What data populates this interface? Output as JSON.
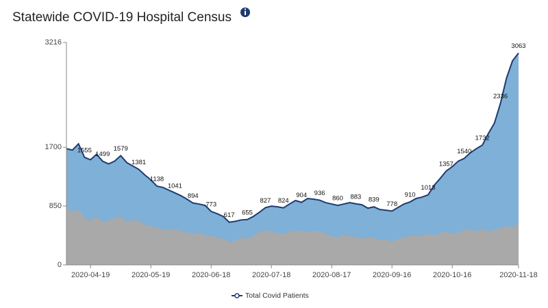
{
  "chart_data": {
    "type": "area",
    "title": "Statewide COVID-19 Hospital Census",
    "x": [
      "2020-04-07",
      "2020-04-10",
      "2020-04-13",
      "2020-04-16",
      "2020-04-19",
      "2020-04-22",
      "2020-04-25",
      "2020-04-28",
      "2020-05-01",
      "2020-05-04",
      "2020-05-07",
      "2020-05-10",
      "2020-05-13",
      "2020-05-16",
      "2020-05-19",
      "2020-05-22",
      "2020-05-25",
      "2020-05-28",
      "2020-05-31",
      "2020-06-03",
      "2020-06-06",
      "2020-06-09",
      "2020-06-12",
      "2020-06-15",
      "2020-06-18",
      "2020-06-21",
      "2020-06-24",
      "2020-06-27",
      "2020-06-30",
      "2020-07-03",
      "2020-07-06",
      "2020-07-09",
      "2020-07-12",
      "2020-07-15",
      "2020-07-18",
      "2020-07-21",
      "2020-07-24",
      "2020-07-27",
      "2020-07-30",
      "2020-08-02",
      "2020-08-05",
      "2020-08-08",
      "2020-08-11",
      "2020-08-14",
      "2020-08-17",
      "2020-08-20",
      "2020-08-23",
      "2020-08-26",
      "2020-08-29",
      "2020-09-01",
      "2020-09-04",
      "2020-09-07",
      "2020-09-10",
      "2020-09-13",
      "2020-09-16",
      "2020-09-19",
      "2020-09-22",
      "2020-09-25",
      "2020-09-28",
      "2020-10-01",
      "2020-10-04",
      "2020-10-07",
      "2020-10-10",
      "2020-10-13",
      "2020-10-16",
      "2020-10-19",
      "2020-10-22",
      "2020-10-25",
      "2020-10-28",
      "2020-10-31",
      "2020-11-03",
      "2020-11-06",
      "2020-11-09",
      "2020-11-12",
      "2020-11-15",
      "2020-11-18"
    ],
    "series": [
      {
        "name": "Total Covid Patients",
        "color": "#1f3a6e",
        "fill": "#7eb0d8",
        "values": [
          1680,
          1660,
          1750,
          1555,
          1520,
          1600,
          1499,
          1460,
          1500,
          1579,
          1480,
          1430,
          1381,
          1300,
          1230,
          1138,
          1120,
          1080,
          1041,
          1000,
          950,
          894,
          880,
          860,
          773,
          740,
          700,
          617,
          630,
          650,
          655,
          700,
          760,
          827,
          850,
          840,
          824,
          880,
          930,
          904,
          960,
          950,
          936,
          900,
          880,
          860,
          880,
          900,
          883,
          870,
          820,
          839,
          800,
          790,
          778,
          830,
          880,
          910,
          960,
          980,
          1013,
          1150,
          1250,
          1357,
          1420,
          1500,
          1540,
          1620,
          1680,
          1732,
          1900,
          2050,
          2336,
          2700,
          2950,
          3063
        ],
        "value_labels": [
          null,
          null,
          null,
          "1555",
          null,
          null,
          "1499",
          null,
          null,
          "1579",
          null,
          null,
          "1381",
          null,
          null,
          "1138",
          null,
          null,
          "1041",
          null,
          null,
          "894",
          null,
          null,
          "773",
          null,
          null,
          "617",
          null,
          null,
          "655",
          null,
          null,
          "827",
          null,
          null,
          "824",
          null,
          null,
          "904",
          null,
          null,
          "936",
          null,
          null,
          "860",
          null,
          null,
          "883",
          null,
          null,
          "839",
          null,
          null,
          "778",
          null,
          null,
          "910",
          null,
          null,
          "1013",
          null,
          null,
          "1357",
          null,
          null,
          "1540",
          null,
          null,
          "1732",
          null,
          null,
          "2336",
          null,
          null,
          "3063"
        ]
      },
      {
        "color": "#a9a9a9",
        "values": [
          830,
          760,
          800,
          680,
          640,
          700,
          620,
          640,
          680,
          700,
          620,
          650,
          640,
          580,
          560,
          540,
          520,
          500,
          520,
          480,
          470,
          450,
          470,
          430,
          420,
          400,
          380,
          330,
          350,
          400,
          380,
          420,
          470,
          500,
          480,
          460,
          450,
          480,
          500,
          490,
          470,
          500,
          480,
          450,
          420,
          400,
          430,
          420,
          400,
          380,
          400,
          390,
          360,
          370,
          330,
          380,
          400,
          420,
          430,
          420,
          450,
          430,
          460,
          480,
          450,
          470,
          500,
          520,
          480,
          520,
          480,
          510,
          530,
          560,
          540,
          600
        ]
      }
    ],
    "xlim": [
      "2020-04-07",
      "2020-11-18"
    ],
    "xticks": [
      "2020-04-19",
      "2020-05-19",
      "2020-06-18",
      "2020-07-18",
      "2020-08-17",
      "2020-09-16",
      "2020-10-16",
      "2020-11-18"
    ],
    "ylim": [
      0,
      3216
    ],
    "yticks": [
      0,
      850,
      1700,
      3216
    ],
    "legend": "bottom"
  }
}
